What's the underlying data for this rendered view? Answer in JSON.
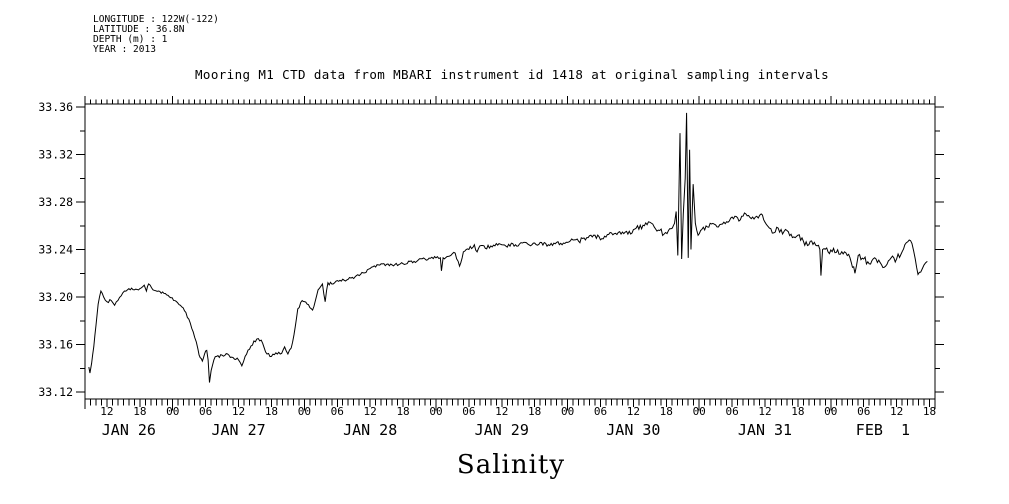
{
  "meta": {
    "lines": [
      "LONGITUDE : 122W(-122)",
      "LATITUDE : 36.8N",
      "DEPTH (m) : 1",
      "YEAR : 2013"
    ]
  },
  "title": "Mooring M1 CTD data from MBARI instrument id 1418 at original sampling intervals",
  "chart_data": {
    "type": "line",
    "title": "Mooring M1 CTD data from MBARI instrument id 1418 at original sampling intervals",
    "xlabel": "Salinity",
    "grid": false,
    "legend": false,
    "line_color": "#000000",
    "x_axis": {
      "hours_total": 155,
      "start_time": "JAN 26 08:00",
      "end_time": "FEB 1 19:00",
      "minor_tick_every_hours": 1,
      "labeled_ticks": [
        {
          "t": 4,
          "label": "12"
        },
        {
          "t": 10,
          "label": "18"
        },
        {
          "t": 16,
          "label": "00"
        },
        {
          "t": 22,
          "label": "06"
        },
        {
          "t": 28,
          "label": "12"
        },
        {
          "t": 34,
          "label": "18"
        },
        {
          "t": 40,
          "label": "00"
        },
        {
          "t": 46,
          "label": "06"
        },
        {
          "t": 52,
          "label": "12"
        },
        {
          "t": 58,
          "label": "18"
        },
        {
          "t": 64,
          "label": "00"
        },
        {
          "t": 70,
          "label": "06"
        },
        {
          "t": 76,
          "label": "12"
        },
        {
          "t": 82,
          "label": "18"
        },
        {
          "t": 88,
          "label": "00"
        },
        {
          "t": 94,
          "label": "06"
        },
        {
          "t": 100,
          "label": "12"
        },
        {
          "t": 106,
          "label": "18"
        },
        {
          "t": 112,
          "label": "00"
        },
        {
          "t": 118,
          "label": "06"
        },
        {
          "t": 124,
          "label": "12"
        },
        {
          "t": 130,
          "label": "18"
        },
        {
          "t": 136,
          "label": "00"
        },
        {
          "t": 142,
          "label": "06"
        },
        {
          "t": 148,
          "label": "12"
        },
        {
          "t": 154,
          "label": "18"
        }
      ],
      "midnight_ticks": [
        16,
        40,
        64,
        88,
        112,
        136
      ],
      "day_labels": [
        {
          "t": 8,
          "label": "JAN 26"
        },
        {
          "t": 28,
          "label": "JAN 27"
        },
        {
          "t": 52,
          "label": "JAN 28"
        },
        {
          "t": 76,
          "label": "JAN 29"
        },
        {
          "t": 100,
          "label": "JAN 30"
        },
        {
          "t": 124,
          "label": "JAN 31"
        },
        {
          "t": 145.5,
          "label": "FEB  1"
        }
      ]
    },
    "y_axis": {
      "ylim": [
        33.12,
        33.36
      ],
      "major_ticks": [
        {
          "v": 33.12,
          "label": "33.12"
        },
        {
          "v": 33.16,
          "label": "33.16"
        },
        {
          "v": 33.2,
          "label": "33.20"
        },
        {
          "v": 33.24,
          "label": "33.24"
        },
        {
          "v": 33.28,
          "label": "33.28"
        },
        {
          "v": 33.32,
          "label": "33.32"
        },
        {
          "v": 33.36,
          "label": "33.36"
        }
      ],
      "minor_ticks": [
        33.14,
        33.18,
        33.22,
        33.26,
        33.3,
        33.34
      ]
    },
    "noise": {
      "seed": 3,
      "default_amplitude": 0.0015,
      "sample_step_hours": 0.25
    },
    "series": [
      {
        "name": "salinity",
        "color": "#000000",
        "points": [
          [
            0.7,
            33.141,
            0.0008
          ],
          [
            0.9,
            33.136
          ],
          [
            1.2,
            33.144
          ],
          [
            1.6,
            33.158
          ],
          [
            2.0,
            33.176
          ],
          [
            2.4,
            33.194
          ],
          [
            2.9,
            33.205
          ],
          [
            3.4,
            33.2
          ],
          [
            4.0,
            33.196,
            0.0012
          ],
          [
            4.8,
            33.197
          ],
          [
            5.4,
            33.193
          ],
          [
            6.0,
            33.197
          ],
          [
            6.6,
            33.201
          ],
          [
            7.2,
            33.205,
            0.001
          ],
          [
            8.0,
            33.207
          ],
          [
            9.0,
            33.206
          ],
          [
            10.0,
            33.207
          ],
          [
            10.8,
            33.21
          ],
          [
            11.2,
            33.205
          ],
          [
            11.6,
            33.211
          ],
          [
            12.4,
            33.206
          ],
          [
            13.4,
            33.205
          ],
          [
            14.4,
            33.203
          ],
          [
            15.4,
            33.2
          ],
          [
            16.4,
            33.197
          ],
          [
            17.4,
            33.193
          ],
          [
            18.4,
            33.187,
            0.0015
          ],
          [
            19.2,
            33.178
          ],
          [
            20.0,
            33.166
          ],
          [
            20.6,
            33.156
          ],
          [
            21.0,
            33.149
          ],
          [
            21.4,
            33.146
          ],
          [
            21.8,
            33.152
          ],
          [
            22.2,
            33.155
          ],
          [
            22.45,
            33.147
          ],
          [
            22.7,
            33.128
          ],
          [
            23.0,
            33.138
          ],
          [
            23.5,
            33.147
          ],
          [
            24.0,
            33.15,
            0.0015
          ],
          [
            25.0,
            33.151
          ],
          [
            26.0,
            33.152
          ],
          [
            27.0,
            33.149
          ],
          [
            28.0,
            33.147
          ],
          [
            28.6,
            33.142
          ],
          [
            29.2,
            33.15
          ],
          [
            30.0,
            33.156
          ],
          [
            30.8,
            33.163
          ],
          [
            31.6,
            33.165
          ],
          [
            32.4,
            33.161
          ],
          [
            33.2,
            33.152
          ],
          [
            34.0,
            33.15
          ],
          [
            34.8,
            33.153
          ],
          [
            35.6,
            33.152
          ],
          [
            36.4,
            33.158
          ],
          [
            37.0,
            33.152
          ],
          [
            37.6,
            33.157
          ],
          [
            38.1,
            33.168
          ],
          [
            38.8,
            33.19
          ],
          [
            39.6,
            33.197
          ],
          [
            40.5,
            33.194
          ],
          [
            41.5,
            33.189
          ],
          [
            42.5,
            33.206
          ],
          [
            43.3,
            33.211
          ],
          [
            43.8,
            33.196
          ],
          [
            44.3,
            33.212
          ],
          [
            45.0,
            33.211,
            0.0012
          ],
          [
            46.5,
            33.214
          ],
          [
            48.0,
            33.215
          ],
          [
            50.0,
            33.218
          ],
          [
            52.0,
            33.224
          ],
          [
            54.0,
            33.228
          ],
          [
            56.0,
            33.227
          ],
          [
            58.0,
            33.228
          ],
          [
            60.0,
            33.23
          ],
          [
            62.0,
            33.232
          ],
          [
            64.0,
            33.233
          ],
          [
            64.8,
            33.233
          ],
          [
            65.0,
            33.222
          ],
          [
            65.3,
            33.233
          ],
          [
            66.0,
            33.234
          ],
          [
            67.5,
            33.237
          ],
          [
            68.3,
            33.226
          ],
          [
            69.0,
            33.238
          ],
          [
            70.0,
            33.24,
            0.0018
          ],
          [
            71.0,
            33.244
          ],
          [
            71.5,
            33.238
          ],
          [
            72.0,
            33.243
          ],
          [
            73.0,
            33.241
          ],
          [
            74.0,
            33.243
          ],
          [
            75.0,
            33.245
          ],
          [
            76.0,
            33.244
          ],
          [
            77.0,
            33.242
          ],
          [
            78.0,
            33.245
          ],
          [
            79.0,
            33.243
          ],
          [
            80.0,
            33.246
          ],
          [
            81.5,
            33.244
          ],
          [
            83.0,
            33.246
          ],
          [
            84.5,
            33.244
          ],
          [
            86.0,
            33.246
          ],
          [
            87.0,
            33.244
          ],
          [
            88.0,
            33.246
          ],
          [
            89.0,
            33.248
          ],
          [
            90.0,
            33.247,
            0.0022
          ],
          [
            91.5,
            33.25
          ],
          [
            93.0,
            33.252
          ],
          [
            94.5,
            33.249
          ],
          [
            96.0,
            33.254
          ],
          [
            97.5,
            33.255
          ],
          [
            99.0,
            33.253
          ],
          [
            100.5,
            33.258
          ],
          [
            102.0,
            33.26
          ],
          [
            103.0,
            33.263
          ],
          [
            103.8,
            33.259
          ],
          [
            104.8,
            33.256
          ],
          [
            105.6,
            33.253,
            0.0018
          ],
          [
            106.4,
            33.256
          ],
          [
            107.1,
            33.258,
            0.0008
          ],
          [
            107.5,
            33.262
          ],
          [
            107.8,
            33.272
          ],
          [
            108.1,
            33.235
          ],
          [
            108.5,
            33.338
          ],
          [
            108.8,
            33.232
          ],
          [
            109.1,
            33.27
          ],
          [
            109.45,
            33.3
          ],
          [
            109.7,
            33.355
          ],
          [
            110.0,
            33.233
          ],
          [
            110.25,
            33.324
          ],
          [
            110.5,
            33.24
          ],
          [
            110.9,
            33.295
          ],
          [
            111.3,
            33.262
          ],
          [
            111.8,
            33.252,
            0.0018
          ],
          [
            112.5,
            33.257
          ],
          [
            113.5,
            33.259
          ],
          [
            114.5,
            33.262
          ],
          [
            115.5,
            33.259
          ],
          [
            116.5,
            33.263
          ],
          [
            117.5,
            33.264
          ],
          [
            118.5,
            33.268,
            0.0022
          ],
          [
            119.5,
            33.265
          ],
          [
            120.5,
            33.27
          ],
          [
            121.5,
            33.266
          ],
          [
            122.5,
            33.268
          ],
          [
            123.3,
            33.27
          ],
          [
            124.0,
            33.263
          ],
          [
            124.8,
            33.258
          ],
          [
            125.6,
            33.254
          ],
          [
            126.4,
            33.258
          ],
          [
            127.2,
            33.253
          ],
          [
            128.0,
            33.256
          ],
          [
            129.0,
            33.25
          ],
          [
            130.0,
            33.252
          ],
          [
            131.0,
            33.247,
            0.0028
          ],
          [
            132.0,
            33.244
          ],
          [
            133.0,
            33.246
          ],
          [
            134.0,
            33.24,
            0.0012
          ],
          [
            134.2,
            33.218
          ],
          [
            134.5,
            33.24,
            0.0028
          ],
          [
            135.5,
            33.238
          ],
          [
            136.5,
            33.241
          ],
          [
            137.5,
            33.236
          ],
          [
            138.5,
            33.238
          ],
          [
            139.5,
            33.233
          ],
          [
            140.4,
            33.22
          ],
          [
            141.0,
            33.235
          ],
          [
            142.0,
            33.232,
            0.0032
          ],
          [
            143.0,
            33.228
          ],
          [
            144.0,
            33.233
          ],
          [
            145.0,
            33.229
          ],
          [
            146.0,
            33.226
          ],
          [
            147.0,
            33.233
          ],
          [
            148.0,
            33.232
          ],
          [
            148.8,
            33.236,
            0.0018
          ],
          [
            149.5,
            33.244
          ],
          [
            150.3,
            33.248
          ],
          [
            150.8,
            33.245
          ],
          [
            151.4,
            33.232,
            0.001
          ],
          [
            151.9,
            33.219
          ],
          [
            152.4,
            33.221
          ],
          [
            153.0,
            33.227
          ],
          [
            153.6,
            33.23
          ]
        ]
      }
    ]
  }
}
